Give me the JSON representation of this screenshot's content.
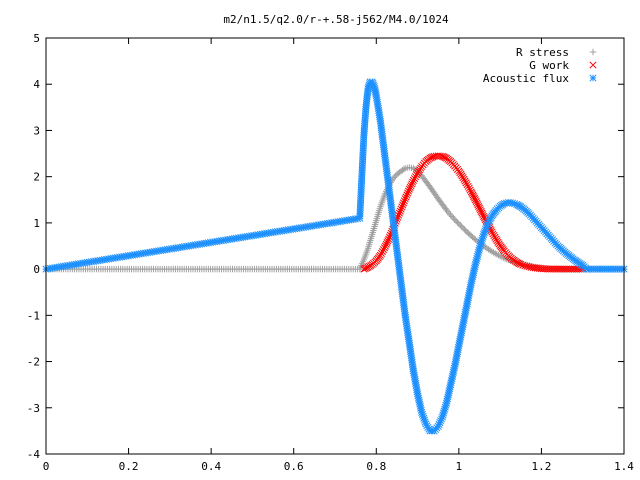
{
  "chart_data": {
    "type": "scatter",
    "title": "m2/n1.5/q2.0/r-+.58-j562/M4.0/1024",
    "xlabel": "",
    "ylabel": "",
    "xlim": [
      0,
      1.4
    ],
    "ylim": [
      -4,
      5
    ],
    "grid": false,
    "legend_position": "top-right",
    "x_ticks": [
      "0",
      "0.2",
      "0.4",
      "0.6",
      "0.8",
      "1",
      "1.2",
      "1.4"
    ],
    "y_ticks": [
      "-4",
      "-3",
      "-2",
      "-1",
      "0",
      "1",
      "2",
      "3",
      "4",
      "5"
    ],
    "series": [
      {
        "name": "R stress",
        "marker": "plus",
        "color": "#a0a0a0",
        "x": [
          0.0,
          0.76,
          0.77,
          0.78,
          0.79,
          0.8,
          0.81,
          0.82,
          0.83,
          0.84,
          0.85,
          0.86,
          0.87,
          0.88,
          0.89,
          0.9,
          0.91,
          0.92,
          0.93,
          0.94,
          0.95,
          0.96,
          0.97,
          0.98,
          0.99,
          1.0,
          1.02,
          1.04,
          1.06,
          1.08,
          1.1,
          1.12,
          1.14,
          1.16,
          1.18,
          1.2,
          1.22,
          1.25,
          1.28,
          1.3,
          1.4
        ],
        "y": [
          0.0,
          0.0,
          0.2,
          0.45,
          0.75,
          1.05,
          1.35,
          1.6,
          1.8,
          1.95,
          2.05,
          2.12,
          2.18,
          2.2,
          2.18,
          2.12,
          2.02,
          1.9,
          1.78,
          1.65,
          1.52,
          1.4,
          1.28,
          1.17,
          1.07,
          0.98,
          0.8,
          0.64,
          0.5,
          0.38,
          0.28,
          0.2,
          0.14,
          0.09,
          0.05,
          0.03,
          0.01,
          0.0,
          0.0,
          0.0,
          0.0
        ]
      },
      {
        "name": "G work",
        "marker": "cross",
        "color": "#ff0000",
        "x": [
          0.77,
          0.78,
          0.79,
          0.8,
          0.81,
          0.82,
          0.83,
          0.84,
          0.85,
          0.86,
          0.87,
          0.88,
          0.89,
          0.9,
          0.91,
          0.92,
          0.93,
          0.94,
          0.95,
          0.96,
          0.97,
          0.98,
          0.99,
          1.0,
          1.01,
          1.02,
          1.03,
          1.04,
          1.05,
          1.06,
          1.07,
          1.08,
          1.09,
          1.1,
          1.11,
          1.12,
          1.13,
          1.14,
          1.15,
          1.16,
          1.18,
          1.2,
          1.22,
          1.24,
          1.26,
          1.28,
          1.3
        ],
        "y": [
          0.0,
          0.04,
          0.1,
          0.18,
          0.3,
          0.46,
          0.65,
          0.86,
          1.08,
          1.3,
          1.52,
          1.73,
          1.92,
          2.08,
          2.22,
          2.33,
          2.4,
          2.44,
          2.45,
          2.44,
          2.4,
          2.33,
          2.23,
          2.12,
          1.98,
          1.83,
          1.67,
          1.5,
          1.32,
          1.14,
          0.97,
          0.8,
          0.65,
          0.51,
          0.39,
          0.29,
          0.21,
          0.15,
          0.1,
          0.07,
          0.03,
          0.01,
          0.0,
          0.0,
          0.0,
          0.0,
          0.0
        ]
      },
      {
        "name": "Acoustic flux",
        "marker": "star",
        "color": "#1e90ff",
        "x": [
          0.0,
          0.76,
          0.765,
          0.77,
          0.775,
          0.78,
          0.785,
          0.79,
          0.795,
          0.8,
          0.81,
          0.82,
          0.83,
          0.84,
          0.85,
          0.86,
          0.87,
          0.88,
          0.89,
          0.9,
          0.91,
          0.92,
          0.93,
          0.94,
          0.95,
          0.96,
          0.97,
          0.98,
          0.99,
          1.0,
          1.01,
          1.02,
          1.03,
          1.04,
          1.05,
          1.06,
          1.07,
          1.08,
          1.09,
          1.1,
          1.11,
          1.12,
          1.13,
          1.14,
          1.15,
          1.16,
          1.17,
          1.18,
          1.19,
          1.2,
          1.21,
          1.22,
          1.23,
          1.24,
          1.25,
          1.26,
          1.27,
          1.28,
          1.29,
          1.3,
          1.31,
          1.4
        ],
        "y": [
          0.0,
          1.1,
          2.0,
          2.9,
          3.5,
          3.9,
          4.05,
          4.05,
          3.95,
          3.75,
          3.2,
          2.5,
          1.8,
          1.1,
          0.4,
          -0.3,
          -1.0,
          -1.6,
          -2.2,
          -2.7,
          -3.1,
          -3.35,
          -3.5,
          -3.5,
          -3.4,
          -3.2,
          -2.9,
          -2.5,
          -2.1,
          -1.65,
          -1.2,
          -0.75,
          -0.3,
          0.1,
          0.45,
          0.75,
          0.98,
          1.15,
          1.27,
          1.36,
          1.42,
          1.44,
          1.43,
          1.4,
          1.35,
          1.28,
          1.2,
          1.1,
          1.0,
          0.9,
          0.8,
          0.7,
          0.6,
          0.5,
          0.42,
          0.34,
          0.27,
          0.2,
          0.14,
          0.08,
          0.0,
          0.0
        ]
      }
    ]
  }
}
